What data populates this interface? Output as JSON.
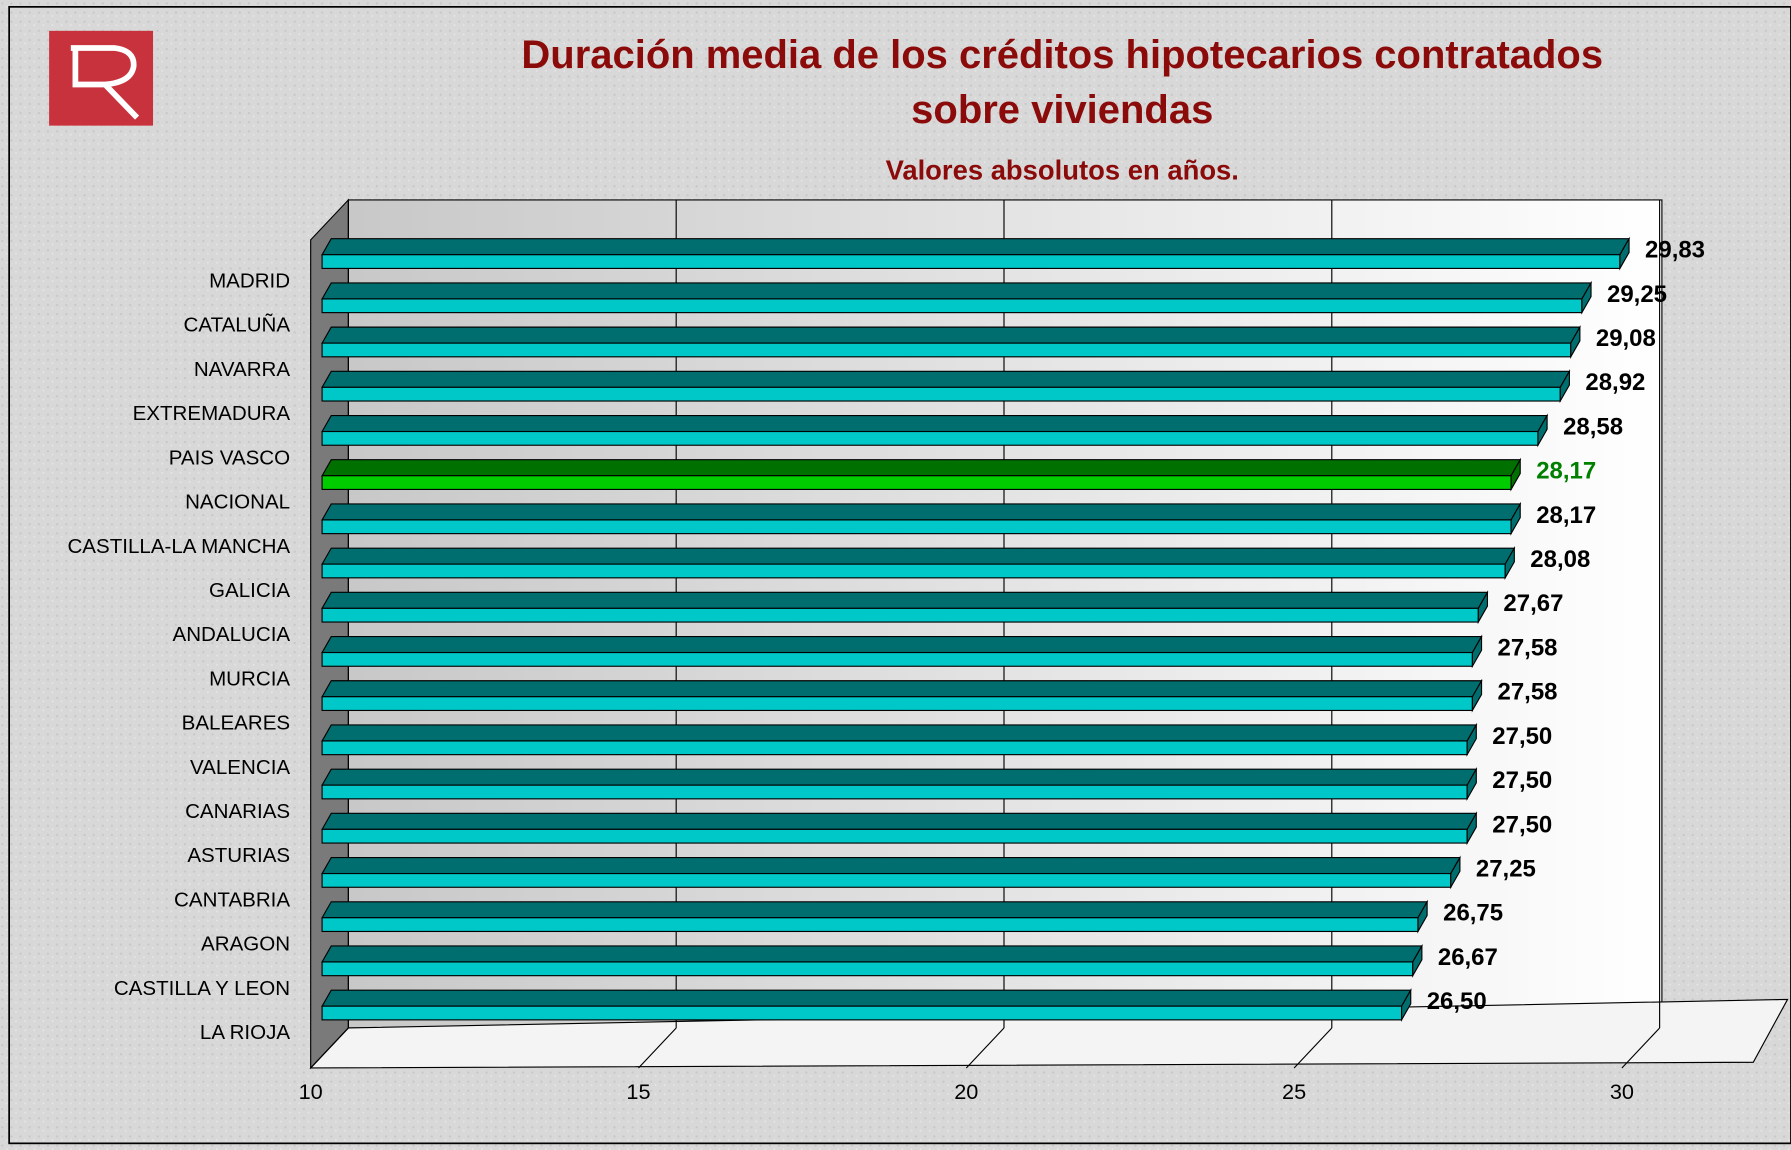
{
  "chart_data": {
    "type": "bar3d",
    "orientation": "horizontal",
    "title": "Duración media de los créditos hipotecarios contratados sobre viviendas",
    "subtitle": "Valores absolutos en años.",
    "categories": [
      "MADRID",
      "CATALUÑA",
      "NAVARRA",
      "EXTREMADURA",
      "PAIS VASCO",
      "NACIONAL",
      "CASTILLA-LA MANCHA",
      "GALICIA",
      "ANDALUCIA",
      "MURCIA",
      "BALEARES",
      "VALENCIA",
      "CANARIAS",
      "ASTURIAS",
      "CANTABRIA",
      "ARAGON",
      "CASTILLA Y LEON",
      "LA RIOJA"
    ],
    "values": [
      29.83,
      29.25,
      29.08,
      28.92,
      28.58,
      28.17,
      28.17,
      28.08,
      27.67,
      27.58,
      27.58,
      27.5,
      27.5,
      27.5,
      27.25,
      26.75,
      26.67,
      26.5
    ],
    "value_labels": [
      "29,83",
      "29,25",
      "29,08",
      "28,92",
      "28,58",
      "28,17",
      "28,17",
      "28,08",
      "27,67",
      "27,58",
      "27,58",
      "27,50",
      "27,50",
      "27,50",
      "27,25",
      "26,75",
      "26,67",
      "26,50"
    ],
    "colors": [
      "#00c8c8",
      "#00c8c8",
      "#00c8c8",
      "#00c8c8",
      "#00c8c8",
      "#00cc00",
      "#00c8c8",
      "#00c8c8",
      "#00c8c8",
      "#00c8c8",
      "#00c8c8",
      "#00c8c8",
      "#00c8c8",
      "#00c8c8",
      "#00c8c8",
      "#00c8c8",
      "#00c8c8",
      "#00c8c8"
    ],
    "label_colors": [
      "#000000",
      "#000000",
      "#000000",
      "#000000",
      "#000000",
      "#008000",
      "#000000",
      "#000000",
      "#000000",
      "#000000",
      "#000000",
      "#000000",
      "#000000",
      "#000000",
      "#000000",
      "#000000",
      "#000000",
      "#000000"
    ],
    "xlim": [
      10,
      30
    ],
    "xticks": [
      10,
      15,
      20,
      25,
      30
    ],
    "grid": true
  }
}
